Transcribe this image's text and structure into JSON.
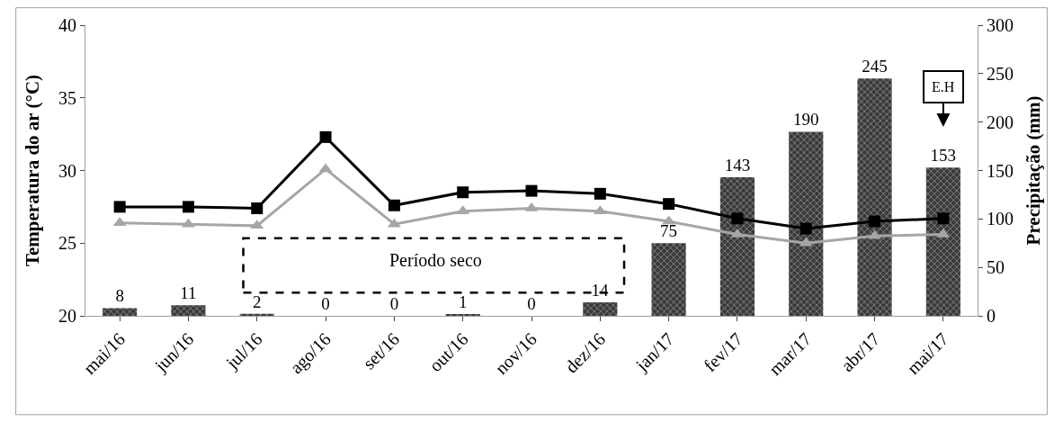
{
  "chart_data": {
    "type": "line",
    "ylabel": "Temperatura do ar (°C)",
    "y2label": "Precipitação (mm)",
    "categories": [
      "mai/16",
      "jun/16",
      "jul/16",
      "ago/16",
      "set/16",
      "out/16",
      "nov/16",
      "dez/16",
      "jan/17",
      "fev/17",
      "mar/17",
      "abr/17",
      "mai/17"
    ],
    "series": [
      {
        "type": "bar",
        "axis": "y2",
        "color": "#3a3a3a",
        "values": [
          8,
          11,
          2,
          0,
          0,
          1,
          0,
          14,
          75,
          143,
          190,
          245,
          153
        ],
        "value_labels": [
          "8",
          "11",
          "2",
          "0",
          "0",
          "1",
          "0",
          "14",
          "75",
          "143",
          "190",
          "245",
          "153"
        ]
      },
      {
        "color": "#000000",
        "marker": "square",
        "values": [
          27.5,
          27.5,
          27.4,
          32.3,
          27.6,
          28.5,
          28.6,
          28.4,
          27.7,
          26.7,
          26.0,
          26.5,
          26.7
        ]
      },
      {
        "color": "#a6a6a6",
        "marker": "triangle",
        "values": [
          26.4,
          26.3,
          26.2,
          30.1,
          26.3,
          27.2,
          27.4,
          27.2,
          26.5,
          25.6,
          25.0,
          25.5,
          25.6
        ]
      }
    ],
    "ylim": [
      20,
      40
    ],
    "yticks": [
      20,
      25,
      30,
      35,
      40
    ],
    "y2lim": [
      0,
      300
    ],
    "y2ticks": [
      0,
      50,
      100,
      150,
      200,
      250,
      300
    ],
    "annotations": [
      "Período seco",
      "E.H"
    ],
    "line_style": "solid"
  }
}
